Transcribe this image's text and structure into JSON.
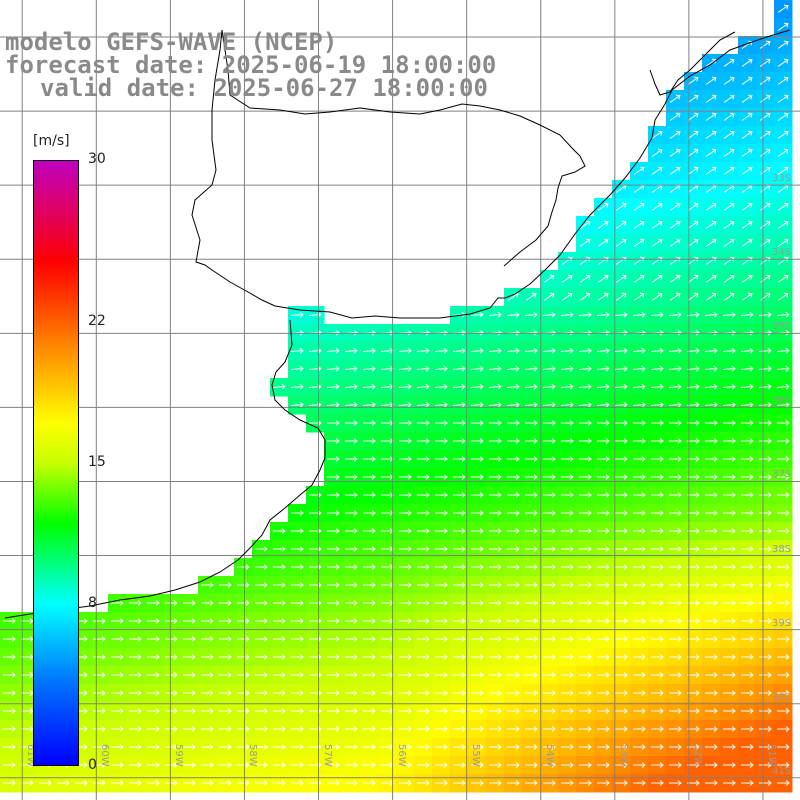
{
  "header": {
    "model_line": "modelo GEFS-WAVE (NCEP)",
    "forecast_line": "forecast date: 2025-06-19 18:00:00",
    "valid_line": "valid date: 2025-06-27 18:00:00"
  },
  "colorbar": {
    "unit": "[m/s]",
    "min": 0,
    "max": 30,
    "labels": [
      "30",
      "22",
      "15",
      "8",
      "0"
    ],
    "label_values": [
      30,
      22,
      15,
      8,
      0
    ],
    "stops": [
      {
        "value": 0,
        "color": "#0000ff"
      },
      {
        "value": 4,
        "color": "#0070ff"
      },
      {
        "value": 8,
        "color": "#00ffff"
      },
      {
        "value": 12,
        "color": "#00ff00"
      },
      {
        "value": 15,
        "color": "#c8ff00"
      },
      {
        "value": 17,
        "color": "#ffff00"
      },
      {
        "value": 21,
        "color": "#ff8000"
      },
      {
        "value": 25,
        "color": "#ff0000"
      },
      {
        "value": 30,
        "color": "#c000c0"
      }
    ]
  },
  "map": {
    "lon_min": -61.3,
    "lon_max": -50.5,
    "lat_min": -41.3,
    "lat_max": -30.5,
    "lat_labels": [
      "33S",
      "34S",
      "35S",
      "36S",
      "37S",
      "38S",
      "39S",
      "40S",
      "41S"
    ],
    "lat_label_values": [
      -33,
      -34,
      -35,
      -36,
      -37,
      -38,
      -39,
      -40,
      -41
    ],
    "lon_labels": [
      "61W",
      "60W",
      "59W",
      "58W",
      "57W",
      "56W",
      "55W",
      "54W",
      "53W",
      "52W",
      "51W"
    ],
    "lon_label_values": [
      -61,
      -60,
      -59,
      -58,
      -57,
      -56,
      -55,
      -54,
      -53,
      -52,
      -51
    ],
    "colors": {
      "land": "#ffffff",
      "coast": "#000000",
      "grid": "#808080",
      "arrows": "#ffffff"
    }
  }
}
